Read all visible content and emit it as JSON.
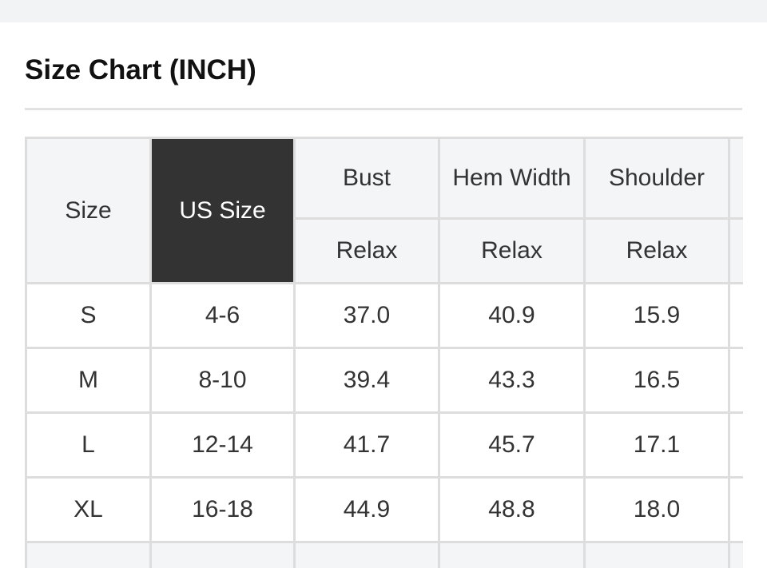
{
  "title": "Size Chart (INCH)",
  "table": {
    "header": {
      "size": "Size",
      "us_size": "US Size",
      "columns": [
        "Bust",
        "Hem Width",
        "Shoulder"
      ],
      "sub": [
        "Relax",
        "Relax",
        "Relax"
      ]
    },
    "rows": [
      {
        "size": "S",
        "us": "4-6",
        "bust": "37.0",
        "hem": "40.9",
        "shoulder": "15.9"
      },
      {
        "size": "M",
        "us": "8-10",
        "bust": "39.4",
        "hem": "43.3",
        "shoulder": "16.5"
      },
      {
        "size": "L",
        "us": "12-14",
        "bust": "41.7",
        "hem": "45.7",
        "shoulder": "17.1"
      },
      {
        "size": "XL",
        "us": "16-18",
        "bust": "44.9",
        "hem": "48.8",
        "shoulder": "18.0"
      }
    ]
  },
  "colors": {
    "header_bg": "#f4f5f7",
    "highlight_bg": "#333333",
    "border": "#dddddd"
  }
}
